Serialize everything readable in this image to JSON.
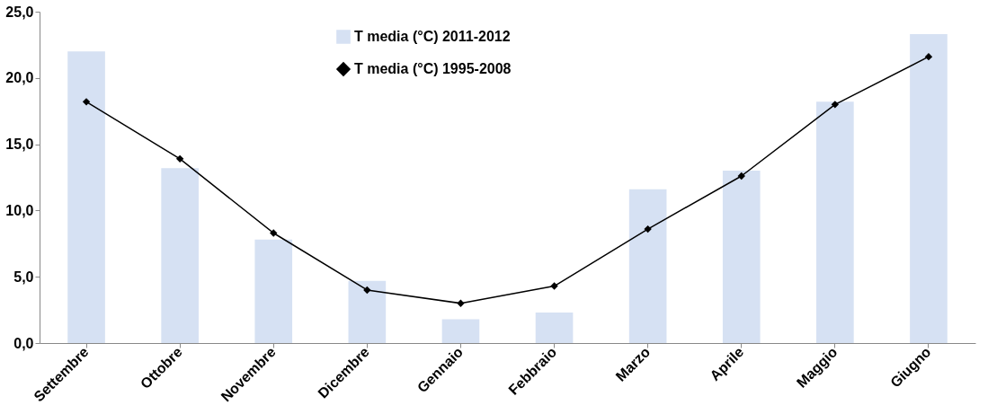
{
  "chart_data": {
    "type": "bar",
    "categories": [
      "Settembre",
      "Ottobre",
      "Novembre",
      "Dicembre",
      "Gennaio",
      "Febbraio",
      "Marzo",
      "Aprile",
      "Maggio",
      "Giugno"
    ],
    "series": [
      {
        "name": "T media (°C) 2011-2012",
        "color": "#d6e1f3",
        "values": [
          22.0,
          13.2,
          7.8,
          4.7,
          1.8,
          2.3,
          11.6,
          13.0,
          18.2,
          23.3
        ]
      },
      {
        "name": "T media (°C) 1995-2008",
        "type": "line",
        "color": "#000000",
        "marker": "diamond",
        "line_style": "solid",
        "values": [
          18.2,
          13.9,
          8.3,
          4.0,
          3.0,
          4.3,
          8.6,
          12.6,
          18.0,
          21.6
        ]
      }
    ],
    "ylim": [
      0,
      25
    ],
    "yticks": [
      {
        "value": 0,
        "label": "0,0"
      },
      {
        "value": 5,
        "label": "5,0"
      },
      {
        "value": 10,
        "label": "10,0"
      },
      {
        "value": 15,
        "label": "15,0"
      },
      {
        "value": 20,
        "label": "20,0"
      },
      {
        "value": 25,
        "label": "25,0"
      }
    ],
    "legend": "top",
    "grid": false
  }
}
